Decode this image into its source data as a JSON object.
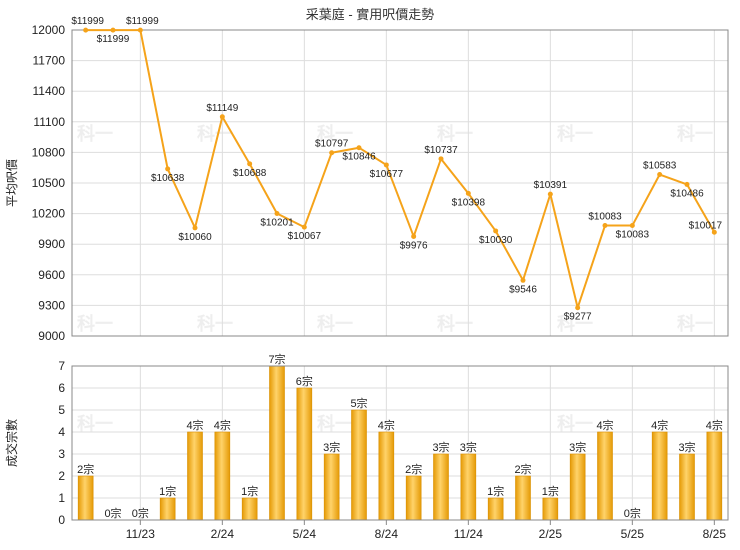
{
  "title": "采葉庭 - 實用呎價走勢",
  "watermark": "科一",
  "colors": {
    "line": "#f5a31a",
    "bar": "#f2aa1c",
    "bar_dark": "#d98f00",
    "grid": "#dddddd",
    "axis": "#888888"
  },
  "chart_data": [
    {
      "type": "line",
      "title": "采葉庭 - 實用呎價走勢",
      "ylabel": "平均呎價",
      "ylim": [
        9000,
        12000
      ],
      "yticks": [
        "9000",
        "9300",
        "9600",
        "9900",
        "10200",
        "10500",
        "10800",
        "11100",
        "11400",
        "11700",
        "12000"
      ],
      "grid": true,
      "values": [
        11999,
        11999,
        11999,
        10638,
        10060,
        11149,
        10688,
        10201,
        10067,
        10797,
        10846,
        10677,
        9976,
        10737,
        10398,
        10030,
        9546,
        10391,
        9277,
        10083,
        10083,
        10583,
        10486,
        10017
      ],
      "labels": [
        "$11999",
        "$11999",
        "$11999",
        "$10638",
        "$10060",
        "$11149",
        "$10688",
        "$10201",
        "$10067",
        "$10797",
        "$10846",
        "$10677",
        "$9976",
        "$10737",
        "$10398",
        "$10030",
        "$9546",
        "$10391",
        "$9277",
        "$10083",
        "$10083",
        "$10583",
        "$10486",
        "$10017"
      ]
    },
    {
      "type": "bar",
      "ylabel": "成交宗數",
      "ylim": [
        0,
        7
      ],
      "yticks": [
        "0",
        "1",
        "2",
        "3",
        "4",
        "5",
        "6",
        "7"
      ],
      "grid": true,
      "values": [
        2,
        0,
        0,
        1,
        4,
        4,
        1,
        7,
        6,
        3,
        5,
        4,
        2,
        3,
        3,
        1,
        2,
        1,
        3,
        4,
        0,
        4,
        3,
        4
      ],
      "labels": [
        "2宗",
        "0宗",
        "0宗",
        "1宗",
        "4宗",
        "4宗",
        "1宗",
        "7宗",
        "6宗",
        "3宗",
        "5宗",
        "4宗",
        "2宗",
        "3宗",
        "3宗",
        "1宗",
        "2宗",
        "1宗",
        "3宗",
        "4宗",
        "0宗",
        "4宗",
        "3宗",
        "4宗"
      ],
      "xticks": [
        {
          "label": "11/23",
          "index": 2
        },
        {
          "label": "2/24",
          "index": 5
        },
        {
          "label": "5/24",
          "index": 8
        },
        {
          "label": "8/24",
          "index": 11
        },
        {
          "label": "11/24",
          "index": 14
        },
        {
          "label": "2/25",
          "index": 17
        },
        {
          "label": "5/25",
          "index": 20
        },
        {
          "label": "8/25",
          "index": 23
        }
      ]
    }
  ]
}
